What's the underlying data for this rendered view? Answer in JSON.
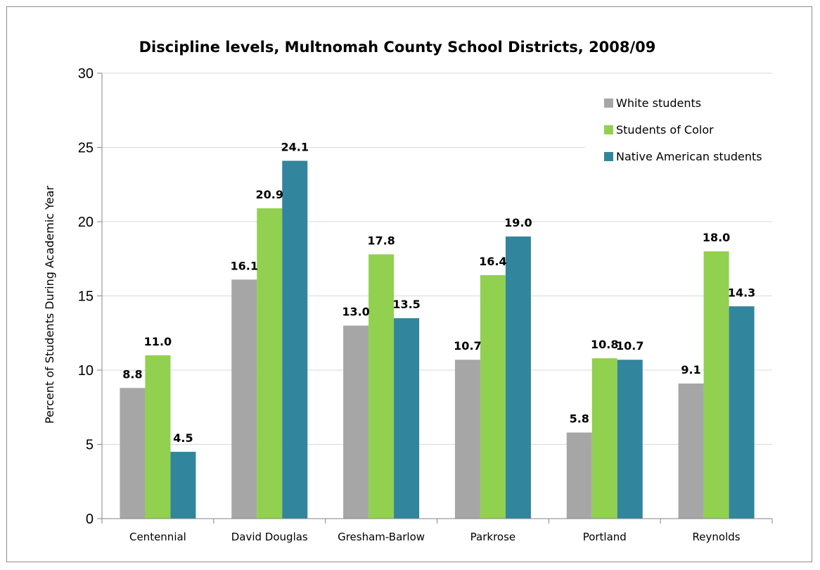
{
  "chart_data": {
    "type": "bar",
    "title": "Discipline levels, Multnomah County School Districts, 2008/09",
    "ylabel": "Percent of Students During Academic Year",
    "xlabel": "",
    "ylim": [
      0,
      30
    ],
    "yticks": [
      0,
      5,
      10,
      15,
      20,
      25,
      30
    ],
    "grid": true,
    "legend_position": "top-right",
    "categories": [
      "Centennial",
      "David Douglas",
      "Gresham-Barlow",
      "Parkrose",
      "Portland",
      "Reynolds"
    ],
    "series": [
      {
        "name": "White students",
        "color": "#a6a6a6",
        "values": [
          8.8,
          16.1,
          13.0,
          10.7,
          5.8,
          9.1
        ]
      },
      {
        "name": "Students of Color",
        "color": "#92d050",
        "values": [
          11.0,
          20.9,
          17.8,
          16.4,
          10.8,
          18.0
        ]
      },
      {
        "name": "Native American students",
        "color": "#31859c",
        "values": [
          4.5,
          24.1,
          13.5,
          19.0,
          10.7,
          14.3
        ]
      }
    ]
  }
}
